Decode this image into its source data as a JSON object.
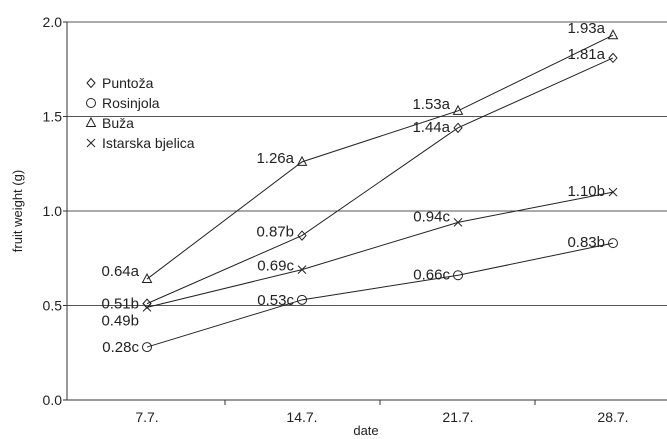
{
  "chart_data": {
    "type": "line",
    "xlabel": "date",
    "ylabel": "fruit weight (g)",
    "categories": [
      "7.7.",
      "14.7.",
      "21.7.",
      "28.7."
    ],
    "ylim": [
      0.0,
      2.0
    ],
    "y_ticks": [
      "0.0",
      "0.5",
      "1.0",
      "1.5",
      "2.0"
    ],
    "grid": "horizontal",
    "legend_position": "top-left",
    "series": [
      {
        "name": "Puntoža",
        "marker": "diamond",
        "values": [
          0.51,
          0.87,
          1.44,
          1.81
        ],
        "labels": [
          "0.51b",
          "0.87b",
          "1.44a",
          "1.81a"
        ]
      },
      {
        "name": "Rosinjola",
        "marker": "circle",
        "values": [
          0.28,
          0.53,
          0.66,
          0.83
        ],
        "labels": [
          "0.28c",
          "0.53c",
          "0.66c",
          "0.83b"
        ]
      },
      {
        "name": "Buža",
        "marker": "triangle",
        "values": [
          0.64,
          1.26,
          1.53,
          1.93
        ],
        "labels": [
          "0.64a",
          "1.26a",
          "1.53a",
          "1.93a"
        ]
      },
      {
        "name": "Istarska bjelica",
        "marker": "cross",
        "values": [
          0.49,
          0.69,
          0.94,
          1.1
        ],
        "labels": [
          "0.49b",
          "0.69c",
          "0.94c",
          "1.10b"
        ]
      }
    ]
  }
}
